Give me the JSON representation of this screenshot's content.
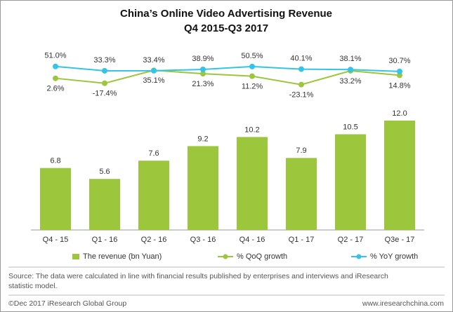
{
  "chart_data": {
    "type": "bar",
    "title": "China’s Online Video Advertising Revenue",
    "subtitle": "Q4 2015-Q3 2017",
    "categories": [
      "Q4 - 15",
      "Q1 - 16",
      "Q2 - 16",
      "Q3 - 16",
      "Q4 - 16",
      "Q1 - 17",
      "Q2 - 17",
      "Q3e - 17"
    ],
    "ylim": [
      0,
      12
    ],
    "y2lim": [
      -100,
      100
    ],
    "series": [
      {
        "name": "The revenue (bn Yuan)",
        "type": "bar",
        "color": "#9cc63b",
        "values": [
          6.8,
          5.6,
          7.6,
          9.2,
          10.2,
          7.9,
          10.5,
          12.0
        ],
        "value_labels": [
          "6.8",
          "5.6",
          "7.6",
          "9.2",
          "10.2",
          "7.9",
          "10.5",
          "12.0"
        ]
      },
      {
        "name": "% QoQ growth",
        "type": "line",
        "axis": "y2",
        "color": "#9cc63b",
        "values": [
          2.6,
          -17.4,
          35.1,
          21.3,
          11.2,
          -23.1,
          33.2,
          14.8
        ],
        "value_labels": [
          "2.6%",
          "-17.4%",
          "35.1%",
          "21.3%",
          "11.2%",
          "-23.1%",
          "33.2%",
          "14.8%"
        ]
      },
      {
        "name": "% YoY growth",
        "type": "line",
        "axis": "y2",
        "color": "#33c4e6",
        "values": [
          51.0,
          33.3,
          33.4,
          38.9,
          50.5,
          40.1,
          38.1,
          30.7
        ],
        "value_labels": [
          "51.0%",
          "33.3%",
          "33.4%",
          "38.9%",
          "50.5%",
          "40.1%",
          "38.1%",
          "30.7%"
        ]
      }
    ],
    "source": [
      "Source: The data were calculated in line with financial results published by enterprises and interviews and iResearch",
      "statistic model."
    ],
    "footer_left": "©Dec 2017 iResearch Global Group",
    "footer_right": "www.iresearchchina.com"
  }
}
